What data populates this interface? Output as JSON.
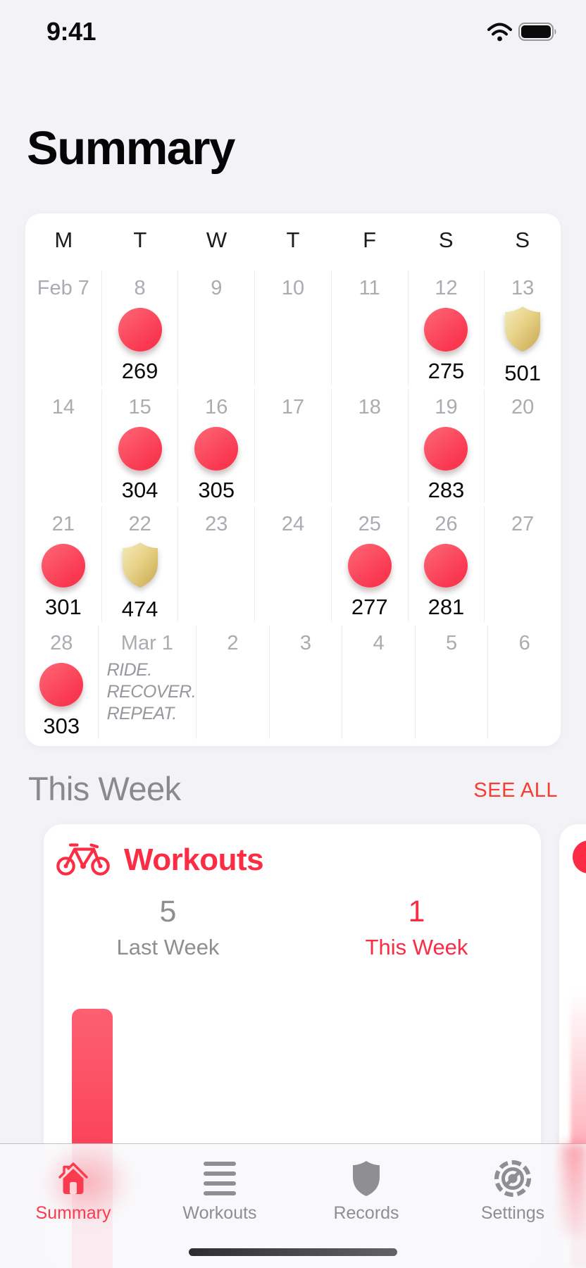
{
  "status_bar": {
    "time": "9:41",
    "icons": [
      "wifi-icon",
      "battery-icon"
    ]
  },
  "header": {
    "title": "Summary"
  },
  "calendar": {
    "day_headers": [
      "M",
      "T",
      "W",
      "T",
      "F",
      "S",
      "S"
    ],
    "weeks": [
      [
        {
          "date": "Feb 7"
        },
        {
          "date": "8",
          "badge": "ride",
          "value": "269"
        },
        {
          "date": "9"
        },
        {
          "date": "10"
        },
        {
          "date": "11"
        },
        {
          "date": "12",
          "badge": "ride",
          "value": "275"
        },
        {
          "date": "13",
          "badge": "award",
          "value": "501"
        }
      ],
      [
        {
          "date": "14"
        },
        {
          "date": "15",
          "badge": "ride",
          "value": "304"
        },
        {
          "date": "16",
          "badge": "ride",
          "value": "305"
        },
        {
          "date": "17"
        },
        {
          "date": "18"
        },
        {
          "date": "19",
          "badge": "ride",
          "value": "283"
        },
        {
          "date": "20"
        }
      ],
      [
        {
          "date": "21",
          "badge": "ride",
          "value": "301"
        },
        {
          "date": "22",
          "badge": "award",
          "value": "474"
        },
        {
          "date": "23"
        },
        {
          "date": "24"
        },
        {
          "date": "25",
          "badge": "ride",
          "value": "277"
        },
        {
          "date": "26",
          "badge": "ride",
          "value": "281"
        },
        {
          "date": "27"
        }
      ],
      [
        {
          "date": "28",
          "badge": "ride",
          "value": "303"
        },
        {
          "date": "Mar 1",
          "note_lines": [
            "RIDE.",
            "RECOVER.",
            "REPEAT."
          ]
        },
        {
          "date": "2"
        },
        {
          "date": "3"
        },
        {
          "date": "4"
        },
        {
          "date": "5"
        },
        {
          "date": "6"
        }
      ]
    ]
  },
  "this_week_section": {
    "title": "This Week",
    "see_all_label": "SEE ALL"
  },
  "workouts_card": {
    "icon": "bicycle-icon",
    "title": "Workouts",
    "stats": [
      {
        "value": "5",
        "label": "Last Week",
        "color": "gray"
      },
      {
        "value": "1",
        "label": "This Week",
        "color": "red"
      }
    ],
    "chart_data": {
      "type": "bar",
      "categories": [
        "Last Week",
        "This Week"
      ],
      "values": [
        5,
        1
      ]
    }
  },
  "tab_bar": {
    "items": [
      {
        "label": "Summary",
        "icon": "house-icon",
        "active": true
      },
      {
        "label": "Workouts",
        "icon": "list-icon",
        "active": false
      },
      {
        "label": "Records",
        "icon": "shield-icon",
        "active": false
      },
      {
        "label": "Settings",
        "icon": "gear-icon",
        "active": false
      }
    ]
  },
  "colors": {
    "background": "#F2F2F7",
    "card": "#FFFFFF",
    "accent_red": "#FB3B4E",
    "ride_circle_red": "#FA3B53",
    "award_gold": "#D8B95E",
    "gray_text": "#8E8E93",
    "date_gray": "#ABABB2",
    "see_all_red": "#FA3C30"
  }
}
